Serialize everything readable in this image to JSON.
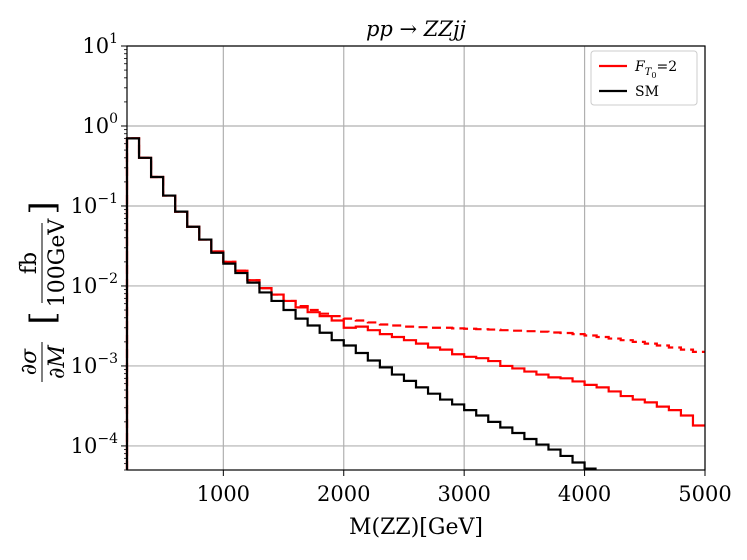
{
  "chart_data": {
    "type": "step",
    "title": "pp → ZZjj",
    "xlabel": "M(ZZ)[GeV]",
    "ylabel": "∂σ/∂M [fb/100GeV]",
    "ylabel_parts": {
      "num": "∂σ",
      "den": "∂M",
      "unit_num": "fb",
      "unit_den": "100GeV"
    },
    "xscale": "linear",
    "yscale": "log",
    "xlim": [
      200,
      5000
    ],
    "ylim": [
      5e-05,
      10
    ],
    "grid": true,
    "x_ticks": [
      1000,
      2000,
      3000,
      4000,
      5000
    ],
    "y_ticks": [
      {
        "value": 0.0001,
        "base": "10",
        "exp": "−4"
      },
      {
        "value": 0.001,
        "base": "10",
        "exp": "−3"
      },
      {
        "value": 0.01,
        "base": "10",
        "exp": "−2"
      },
      {
        "value": 0.1,
        "base": "10",
        "exp": "−1"
      },
      {
        "value": 1,
        "base": "10",
        "exp": "0"
      },
      {
        "value": 10,
        "base": "10",
        "exp": "1"
      }
    ],
    "legend": {
      "position": "top-right",
      "entries": [
        {
          "label_main": "F",
          "label_sub": "T",
          "label_subsub": "0",
          "label_eq": "=2",
          "color": "#ff0000"
        },
        {
          "label_main": "SM",
          "color": "#000000"
        }
      ]
    },
    "bin_edges": [
      200,
      300,
      400,
      500,
      600,
      700,
      800,
      900,
      1000,
      1100,
      1200,
      1300,
      1400,
      1500,
      1600,
      1700,
      1800,
      1900,
      2000,
      2100,
      2200,
      2300,
      2400,
      2500,
      2600,
      2700,
      2800,
      2900,
      3000,
      3100,
      3200,
      3300,
      3400,
      3500,
      3600,
      3700,
      3800,
      3900,
      4000,
      4100,
      4200,
      4300,
      4400,
      4500,
      4600,
      4700,
      4800,
      4900,
      5000
    ],
    "series": [
      {
        "name": "SM",
        "color": "#000000",
        "style": "solid",
        "values": [
          0.7,
          0.4,
          0.23,
          0.135,
          0.085,
          0.055,
          0.038,
          0.026,
          0.019,
          0.0145,
          0.011,
          0.0083,
          0.0065,
          0.005,
          0.0039,
          0.0032,
          0.0026,
          0.0021,
          0.0018,
          0.00145,
          0.00117,
          0.00096,
          0.00078,
          0.00065,
          0.00054,
          0.00045,
          0.00038,
          0.00033,
          0.00028,
          0.00024,
          0.0002,
          0.00017,
          0.000145,
          0.000122,
          0.000104,
          9e-05,
          7.5e-05,
          6.2e-05,
          5.2e-05
        ]
      },
      {
        "name": "F_T0=2 (solid)",
        "color": "#ff0000",
        "style": "solid",
        "values": [
          0.7,
          0.4,
          0.23,
          0.135,
          0.085,
          0.055,
          0.038,
          0.027,
          0.02,
          0.0155,
          0.0118,
          0.0094,
          0.0078,
          0.0065,
          0.0054,
          0.0047,
          0.0042,
          0.0037,
          0.003,
          0.0031,
          0.0028,
          0.0025,
          0.0023,
          0.0021,
          0.0019,
          0.0017,
          0.0016,
          0.0014,
          0.0013,
          0.00125,
          0.00115,
          0.001,
          0.00093,
          0.00085,
          0.00078,
          0.00072,
          0.0007,
          0.00064,
          0.00058,
          0.00054,
          0.00048,
          0.00042,
          0.00038,
          0.00035,
          0.00031,
          0.00028,
          0.00024,
          0.00018
        ]
      },
      {
        "name": "F_T0=2 (dashed)",
        "color": "#ff0000",
        "style": "dashed",
        "values": [
          0.7,
          0.4,
          0.23,
          0.135,
          0.085,
          0.055,
          0.038,
          0.027,
          0.02,
          0.0155,
          0.0118,
          0.0094,
          0.0078,
          0.0065,
          0.0056,
          0.005,
          0.0045,
          0.0042,
          0.0039,
          0.0037,
          0.0035,
          0.0033,
          0.0032,
          0.0031,
          0.00305,
          0.003,
          0.003,
          0.00295,
          0.00292,
          0.00288,
          0.00285,
          0.0028,
          0.00276,
          0.00272,
          0.00268,
          0.00262,
          0.00258,
          0.0025,
          0.0024,
          0.0023,
          0.0022,
          0.0021,
          0.002,
          0.0019,
          0.0018,
          0.0017,
          0.0016,
          0.0015
        ]
      }
    ]
  }
}
